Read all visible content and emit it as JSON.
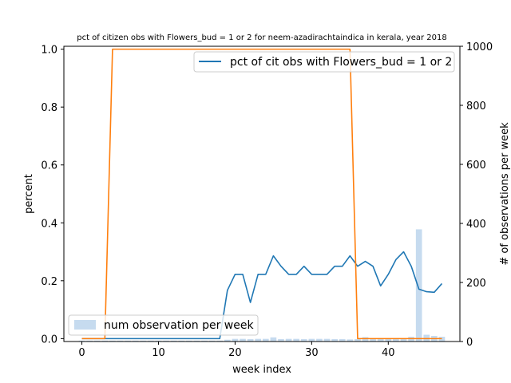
{
  "chart_data": {
    "type": "line",
    "title": "pct of citizen obs with Flowers_bud = 1 or 2 for neem-azadirachtaindica in kerala, year 2018",
    "xlabel": "week index",
    "ylabel_left": "percent",
    "ylabel_right": "# of observations per week",
    "xlim": [
      -2.35,
      49.35
    ],
    "ylim_left": [
      -0.01,
      1.01
    ],
    "ylim_right": [
      0,
      1000
    ],
    "x_ticks": [
      0,
      10,
      20,
      30,
      40
    ],
    "y_ticks_left": [
      0.0,
      0.2,
      0.4,
      0.6,
      0.8,
      1.0
    ],
    "y_ticks_right": [
      0,
      200,
      400,
      600,
      800,
      1000
    ],
    "x_tick_labels": [
      "0",
      "10",
      "20",
      "30",
      "40"
    ],
    "y_tick_labels_left": [
      "0.0",
      "0.2",
      "0.4",
      "0.6",
      "0.8",
      "1.0"
    ],
    "y_tick_labels_right": [
      "0",
      "200",
      "400",
      "600",
      "800",
      "1000"
    ],
    "grid": false,
    "legend_line": {
      "label": "pct of cit obs with Flowers_bud = 1 or 2",
      "placement": "upper-right"
    },
    "legend_bar": {
      "label": "num observation per week",
      "placement": "lower-left"
    },
    "colors": {
      "line_blue": "#1f77b4",
      "line_orange": "#ff7f0e",
      "bars": "#c6dbef"
    },
    "series": [
      {
        "name": "pct of cit obs with Flowers_bud = 1 or 2",
        "axis": "left",
        "color": "#1f77b4",
        "x": [
          0,
          1,
          2,
          3,
          4,
          5,
          6,
          7,
          8,
          9,
          10,
          11,
          12,
          13,
          14,
          15,
          16,
          17,
          18,
          19,
          20,
          21,
          22,
          23,
          24,
          25,
          26,
          27,
          28,
          29,
          30,
          31,
          32,
          33,
          34,
          35,
          36,
          37,
          38,
          39,
          40,
          41,
          42,
          43,
          44,
          45,
          46,
          47
        ],
        "values": [
          0,
          0,
          0,
          0,
          0,
          0,
          0,
          0,
          0,
          0,
          0,
          0,
          0,
          0,
          0,
          0,
          0,
          0,
          0,
          0.167,
          0.222,
          0.222,
          0.125,
          0.222,
          0.222,
          0.286,
          0.25,
          0.222,
          0.222,
          0.25,
          0.222,
          0.222,
          0.222,
          0.25,
          0.25,
          0.286,
          0.25,
          0.267,
          0.25,
          0.182,
          0.222,
          0.273,
          0.3,
          0.25,
          0.171,
          0.162,
          0.16,
          0.19
        ]
      },
      {
        "axis": "left",
        "color": "#ff7f0e",
        "x": [
          0,
          1,
          2,
          3,
          4,
          5,
          6,
          7,
          8,
          9,
          10,
          11,
          12,
          13,
          14,
          15,
          16,
          17,
          18,
          19,
          20,
          21,
          22,
          23,
          24,
          25,
          26,
          27,
          28,
          29,
          30,
          31,
          32,
          33,
          34,
          35,
          36,
          37,
          38,
          39,
          40,
          41,
          42,
          43,
          44,
          45,
          46,
          47
        ],
        "values": [
          0,
          0,
          0,
          0,
          1,
          1,
          1,
          1,
          1,
          1,
          1,
          1,
          1,
          1,
          1,
          1,
          1,
          1,
          1,
          1,
          1,
          1,
          1,
          1,
          1,
          1,
          1,
          1,
          1,
          1,
          1,
          1,
          1,
          1,
          1,
          1,
          0,
          0,
          0,
          0,
          0,
          0,
          0,
          0,
          0,
          0,
          0,
          0
        ]
      },
      {
        "name": "num observation per week",
        "axis": "right",
        "kind": "bar",
        "color": "#c6dbef",
        "x": [
          0,
          1,
          2,
          3,
          4,
          5,
          6,
          7,
          8,
          9,
          10,
          11,
          12,
          13,
          14,
          15,
          16,
          17,
          18,
          19,
          20,
          21,
          22,
          23,
          24,
          25,
          26,
          27,
          28,
          29,
          30,
          31,
          32,
          33,
          34,
          35,
          36,
          37,
          38,
          39,
          40,
          41,
          42,
          43,
          44,
          45,
          46,
          47
        ],
        "values": [
          3,
          3,
          3,
          3,
          3,
          3,
          3,
          3,
          3,
          3,
          3,
          3,
          3,
          3,
          3,
          3,
          3,
          3,
          3,
          6,
          9,
          9,
          8,
          9,
          9,
          14,
          8,
          9,
          9,
          8,
          9,
          9,
          9,
          8,
          8,
          7,
          8,
          15,
          8,
          11,
          9,
          11,
          10,
          16,
          380,
          23,
          19,
          16
        ]
      }
    ]
  }
}
